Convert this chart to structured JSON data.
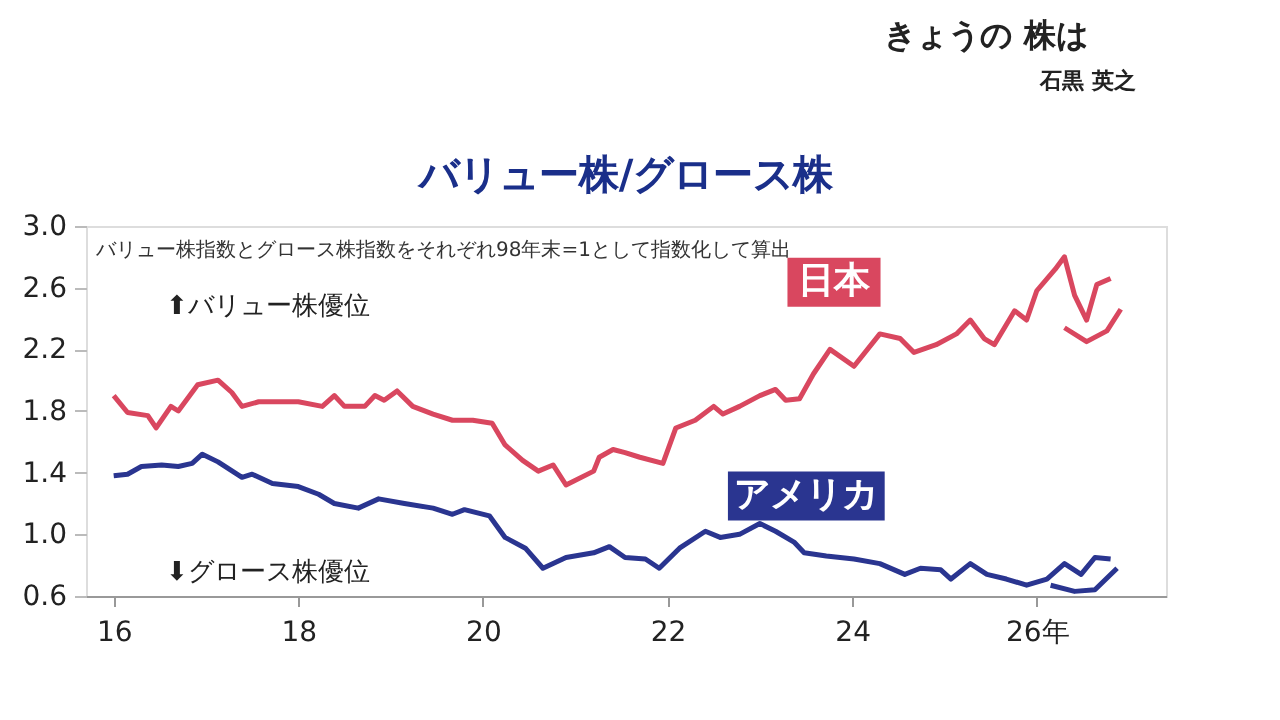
{
  "chart_data": {
    "type": "line",
    "title": "バリュー株/グロース株",
    "annotations": [
      "きょうの 株は",
      "石黒 英之",
      "バリュー株指数とグロース株指数をそれぞれ98年末=1として指数化して算出",
      "⬆バリュー株優位",
      "⬇グロース株優位"
    ],
    "series": [
      {
        "name": "日本",
        "color": "#d9475f",
        "x": [
          16.0,
          16.15,
          16.37,
          16.46,
          16.62,
          16.7,
          16.91,
          17.13,
          17.28,
          17.39,
          17.57,
          18.0,
          18.26,
          18.39,
          18.5,
          18.72,
          18.83,
          18.93,
          19.07,
          19.24,
          19.46,
          19.67,
          19.89,
          20.1,
          20.24,
          20.43,
          20.6,
          20.76,
          20.9,
          21.2,
          21.26,
          21.41,
          21.54,
          21.7,
          21.95,
          22.09,
          22.3,
          22.5,
          22.6,
          22.78,
          23.0,
          23.17,
          23.28,
          23.43,
          23.58,
          23.76,
          24.02,
          24.3,
          24.52,
          24.67,
          24.91,
          25.13,
          25.28,
          25.43,
          25.54,
          25.76,
          25.89,
          26.0,
          26.2,
          26.3,
          26.41,
          26.54,
          26.65,
          26.8
        ],
        "values": [
          1.9,
          1.79,
          1.77,
          1.69,
          1.83,
          1.8,
          1.97,
          2.0,
          1.92,
          1.83,
          1.86,
          1.86,
          1.83,
          1.9,
          1.83,
          1.83,
          1.9,
          1.87,
          1.93,
          1.83,
          1.78,
          1.74,
          1.74,
          1.72,
          1.58,
          1.48,
          1.41,
          1.45,
          1.32,
          1.41,
          1.5,
          1.55,
          1.53,
          1.5,
          1.46,
          1.69,
          1.74,
          1.83,
          1.78,
          1.83,
          1.9,
          1.94,
          1.87,
          1.88,
          2.04,
          2.2,
          2.09,
          2.3,
          2.27,
          2.18,
          2.23,
          2.3,
          2.39,
          2.27,
          2.23,
          2.45,
          2.39,
          2.58,
          2.72,
          2.8,
          2.55,
          2.39,
          2.62,
          2.66
        ]
      },
      {
        "color": "#d9475f",
        "x": [
          26.3,
          26.54,
          26.76,
          26.91
        ],
        "values": [
          2.34,
          2.25,
          2.32,
          2.46
        ]
      },
      {
        "name": "アメリカ",
        "color": "#2a3590",
        "x": [
          16.0,
          16.15,
          16.3,
          16.52,
          16.7,
          16.85,
          16.96,
          17.13,
          17.39,
          17.5,
          17.72,
          18.0,
          18.22,
          18.39,
          18.65,
          18.87,
          19.15,
          19.46,
          19.67,
          19.8,
          20.07,
          20.24,
          20.46,
          20.65,
          20.9,
          21.2,
          21.37,
          21.54,
          21.76,
          21.91,
          22.13,
          22.41,
          22.57,
          22.78,
          23.0,
          23.17,
          23.37,
          23.48,
          23.72,
          24.02,
          24.3,
          24.57,
          24.74,
          24.96,
          25.07,
          25.28,
          25.46,
          25.67,
          25.89,
          26.11,
          26.3,
          26.48,
          26.63,
          26.8
        ],
        "values": [
          1.38,
          1.39,
          1.44,
          1.45,
          1.44,
          1.46,
          1.52,
          1.47,
          1.37,
          1.39,
          1.33,
          1.31,
          1.26,
          1.2,
          1.17,
          1.23,
          1.2,
          1.17,
          1.13,
          1.16,
          1.12,
          0.98,
          0.91,
          0.78,
          0.85,
          0.88,
          0.92,
          0.85,
          0.84,
          0.78,
          0.91,
          1.02,
          0.98,
          1.0,
          1.07,
          1.02,
          0.95,
          0.88,
          0.86,
          0.84,
          0.81,
          0.74,
          0.78,
          0.77,
          0.71,
          0.81,
          0.74,
          0.71,
          0.67,
          0.71,
          0.81,
          0.74,
          0.85,
          0.84
        ]
      },
      {
        "color": "#2a3590",
        "x": [
          26.15,
          26.41,
          26.63,
          26.87
        ],
        "values": [
          0.67,
          0.63,
          0.64,
          0.78
        ]
      }
    ],
    "xlim": [
      15.7,
      27.4
    ],
    "xticks": [
      16,
      18,
      20,
      22,
      24,
      {
        "value": 26,
        "label": "26年"
      }
    ],
    "ylim": [
      0.6,
      3.0
    ],
    "yticks": [
      0.6,
      {
        "value": 1,
        "label": "1.0"
      },
      1.4,
      1.8,
      2.2,
      2.6,
      {
        "value": 3,
        "label": "3.0"
      }
    ],
    "grid": false,
    "legend": false,
    "marker": "none",
    "line_style": "solid"
  }
}
